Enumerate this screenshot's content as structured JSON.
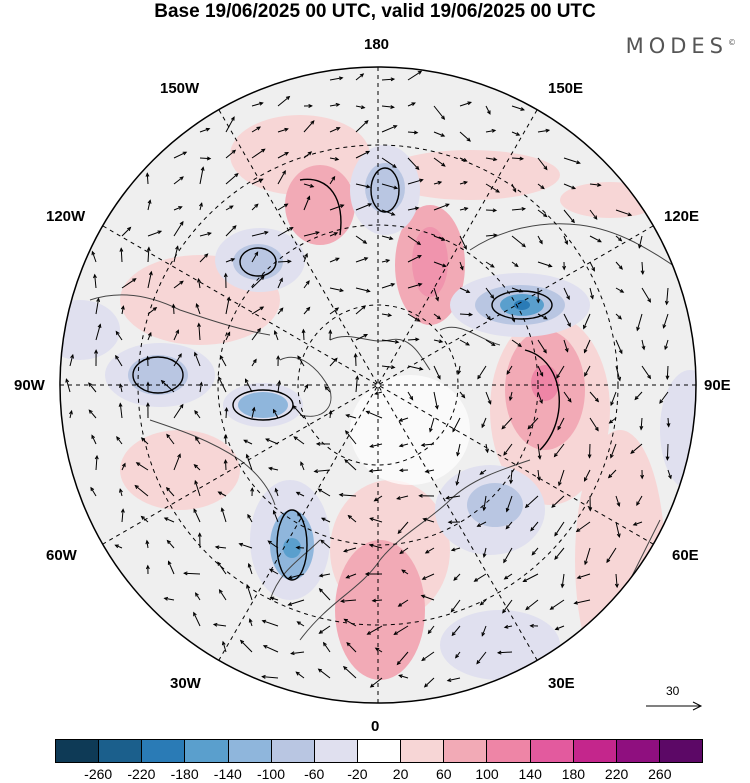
{
  "title": "Base 19/06/2025 00 UTC, valid 19/06/2025 00 UTC",
  "brand": "MODES",
  "brand_mark": "©",
  "longitude_labels": {
    "top": "180",
    "bottom": "0",
    "left": "90W",
    "right": "90E",
    "upper_left_1": "150W",
    "upper_left_2": "120W",
    "upper_right_1": "150E",
    "upper_right_2": "120E",
    "lower_left_1": "60W",
    "lower_left_2": "30W",
    "lower_right_1": "60E",
    "lower_right_2": "30E"
  },
  "reference_vector_label": "30",
  "colorbar": {
    "colors": [
      "#0e3a56",
      "#1b5f8c",
      "#2a7bb6",
      "#5a9fcd",
      "#8fb6dc",
      "#b9c6e2",
      "#e0e0ef",
      "#ffffff",
      "#f7d6d6",
      "#f2aab6",
      "#ee85a6",
      "#e35a9e",
      "#c4268c",
      "#8f0f7f",
      "#5c0866"
    ],
    "tick_labels": [
      "-260",
      "-220",
      "-180",
      "-140",
      "-100",
      "-60",
      "-20",
      "20",
      "60",
      "100",
      "140",
      "180",
      "220",
      "260"
    ]
  },
  "colors": {
    "background_neutral": "#efefef",
    "coast": "#444444",
    "grid": "#000000"
  }
}
